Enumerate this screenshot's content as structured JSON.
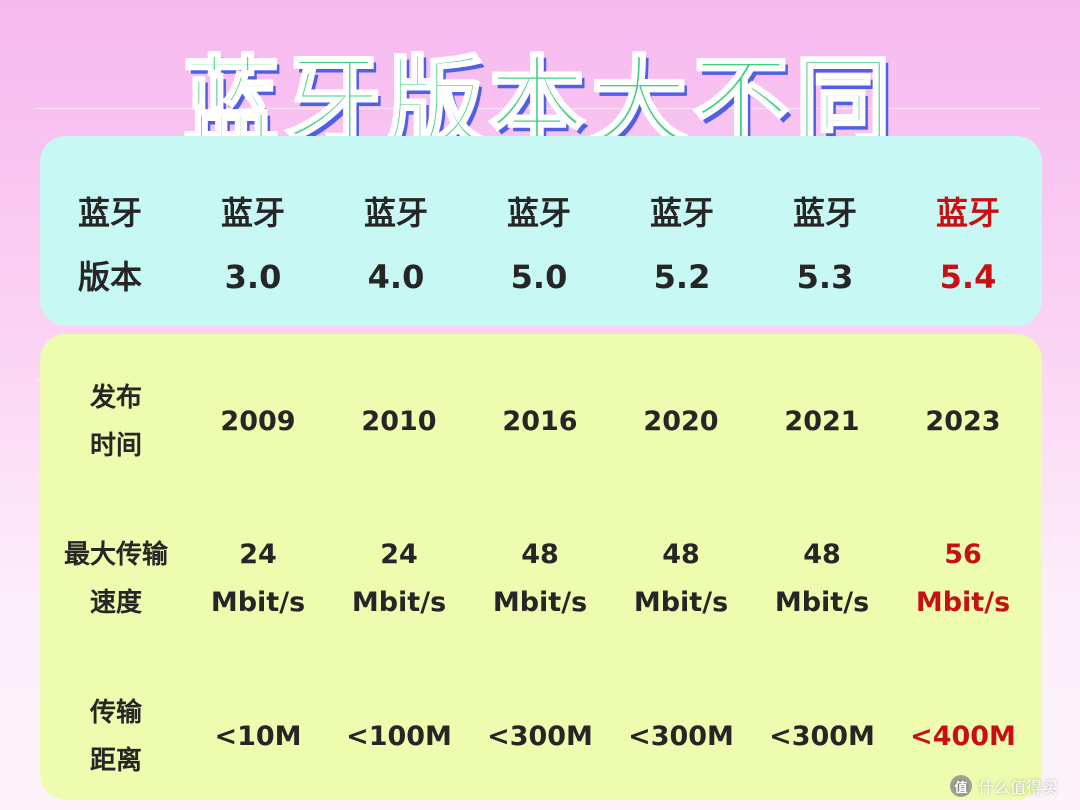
{
  "title": "蓝牙版本大不同",
  "header": {
    "label_line1": "蓝牙",
    "label_line2": "版本",
    "versions": [
      {
        "line1": "蓝牙",
        "line2": "3.0",
        "highlight": false
      },
      {
        "line1": "蓝牙",
        "line2": "4.0",
        "highlight": false
      },
      {
        "line1": "蓝牙",
        "line2": "5.0",
        "highlight": false
      },
      {
        "line1": "蓝牙",
        "line2": "5.2",
        "highlight": false
      },
      {
        "line1": "蓝牙",
        "line2": "5.3",
        "highlight": false
      },
      {
        "line1": "蓝牙",
        "line2": "5.4",
        "highlight": true
      }
    ]
  },
  "rows": {
    "release": {
      "label_line1": "发布",
      "label_line2": "时间",
      "values": [
        "2009",
        "2010",
        "2016",
        "2020",
        "2021",
        "2023"
      ]
    },
    "speed": {
      "label_line1": "最大传输",
      "label_line2": "速度",
      "values": [
        {
          "line1": "24",
          "line2": "Mbit/s"
        },
        {
          "line1": "24",
          "line2": "Mbit/s"
        },
        {
          "line1": "48",
          "line2": "Mbit/s"
        },
        {
          "line1": "48",
          "line2": "Mbit/s"
        },
        {
          "line1": "48",
          "line2": "Mbit/s"
        },
        {
          "line1": "56",
          "line2": "Mbit/s"
        }
      ]
    },
    "distance": {
      "label_line1": "传输",
      "label_line2": "距离",
      "values": [
        "<10M",
        "<100M",
        "<300M",
        "<300M",
        "<300M",
        "<400M"
      ]
    }
  },
  "watermark": {
    "icon": "值",
    "text": "什么值得买"
  },
  "colors": {
    "highlight": "#c80f14",
    "top_panel": "#c8f8f4",
    "bottom_panel": "#edfcae",
    "title_fill": "#3fcf83",
    "title_shadow": "#4f5fe6"
  }
}
